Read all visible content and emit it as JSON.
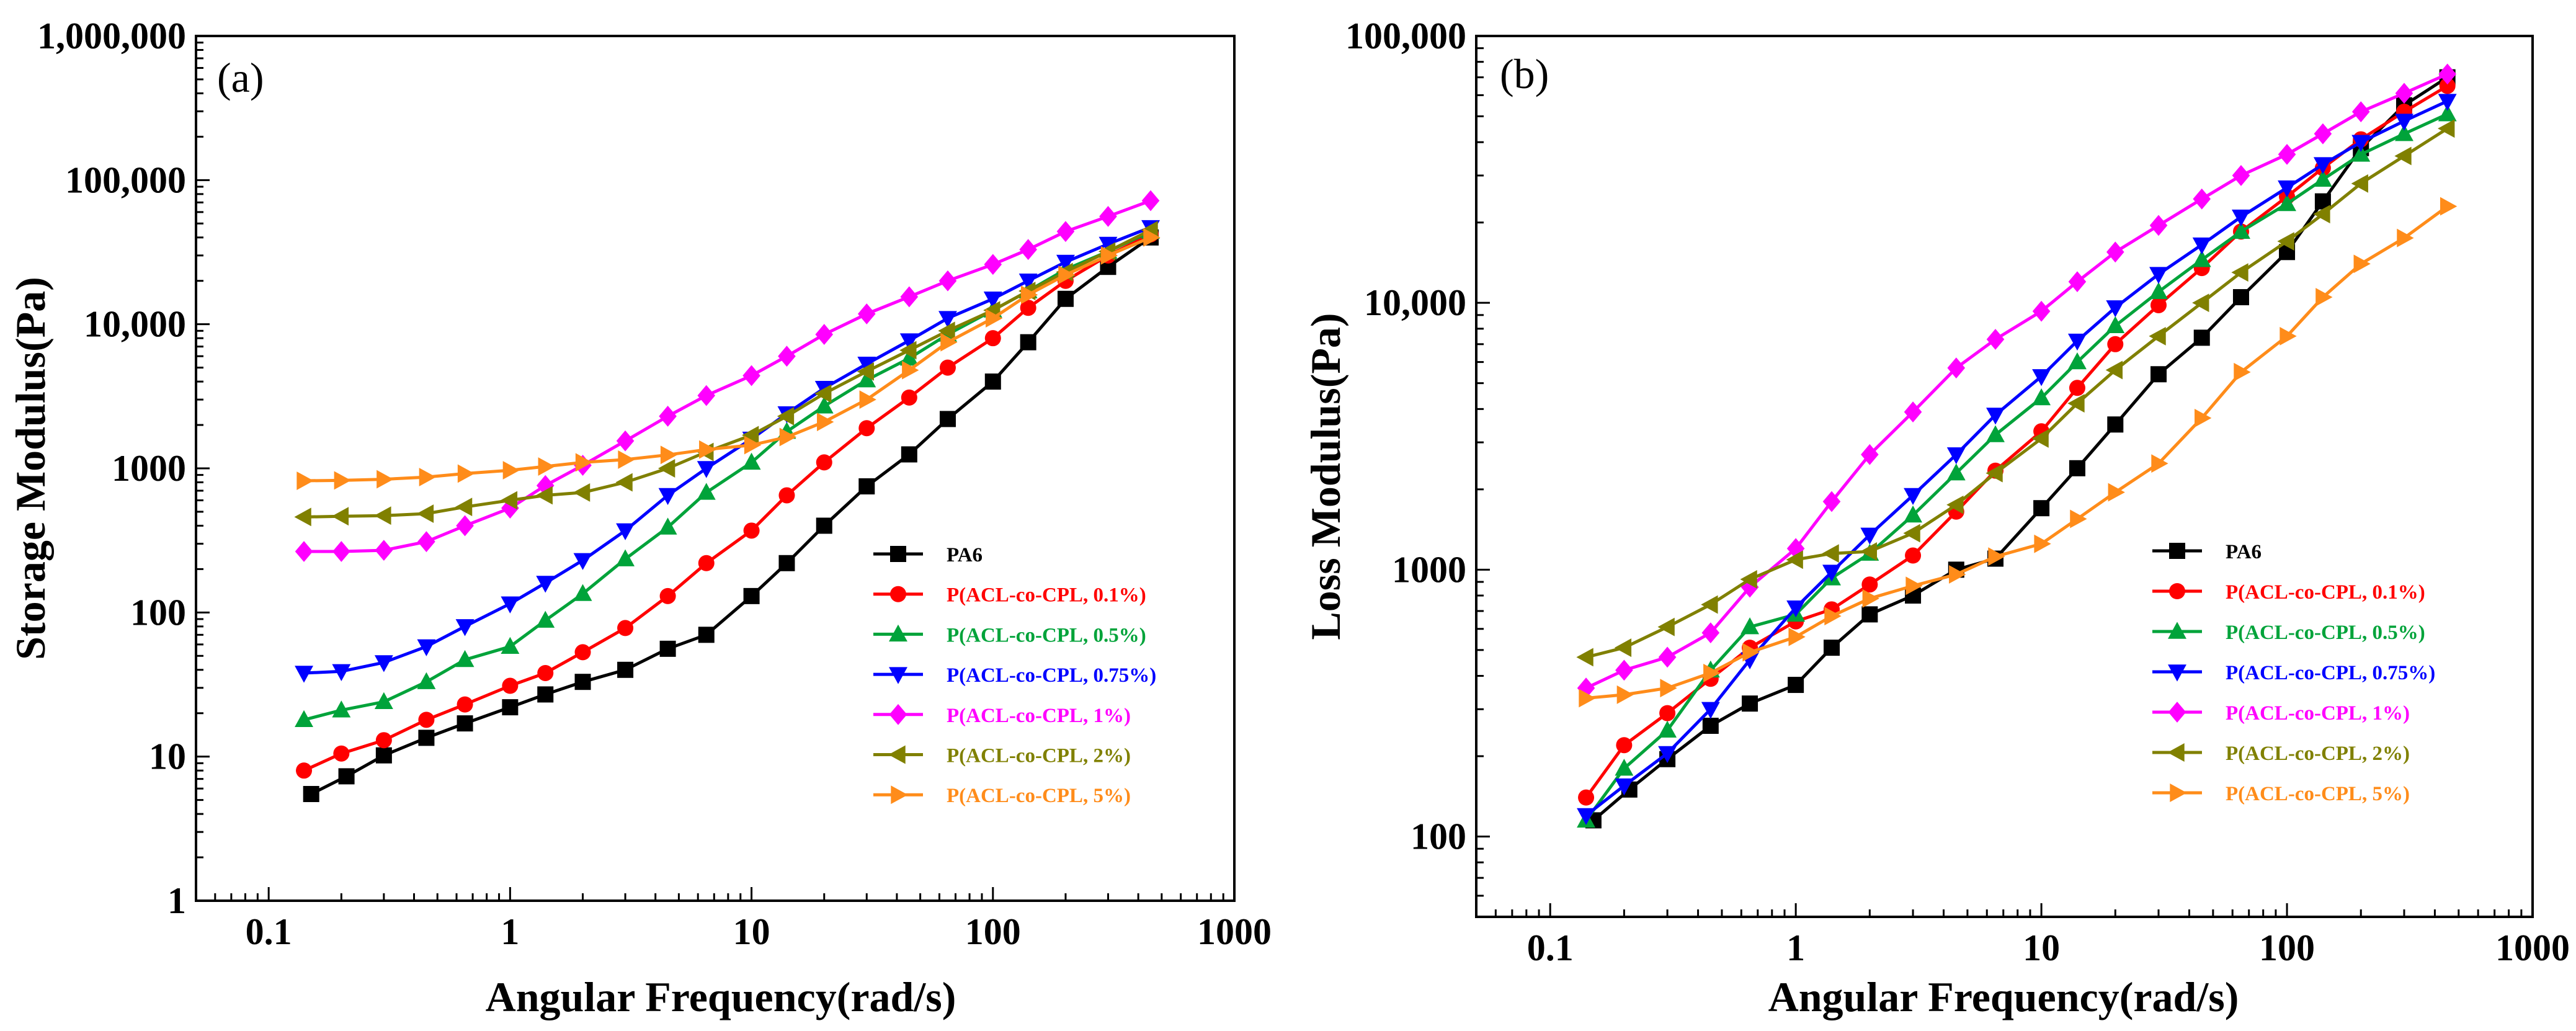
{
  "chart_data": [
    {
      "type": "line",
      "panel_label": "(a)",
      "xlabel": "Angular Frequency(rad/s)",
      "ylabel": "Storage Modulus(Pa)",
      "xscale": "log",
      "yscale": "log",
      "xlim": [
        0.05,
        1000
      ],
      "ylim": [
        1,
        1000000
      ],
      "x_ticks": [
        0.1,
        1,
        10,
        100,
        1000
      ],
      "x_tick_labels": [
        "0.1",
        "1",
        "10",
        "100",
        "1000"
      ],
      "y_ticks": [
        1,
        10,
        100,
        1000,
        10000,
        100000,
        1000000
      ],
      "y_tick_labels": [
        "1",
        "10",
        "100",
        "1000",
        "10,000",
        "100,000",
        "1,000,000"
      ],
      "legend_position": "right",
      "series": [
        {
          "name": "PA6",
          "color": "#000000",
          "marker": "square",
          "x": [
            0.15,
            0.21,
            0.3,
            0.45,
            0.65,
            1,
            1.4,
            2,
            3,
            4.5,
            6.5,
            10,
            14,
            20,
            30,
            45,
            65,
            100,
            140,
            200,
            300,
            450
          ],
          "y": [
            5.5,
            7.3,
            10.2,
            13.5,
            17,
            22,
            27,
            33,
            40,
            56,
            70,
            130,
            220,
            400,
            750,
            1250,
            2200,
            4000,
            7500,
            15000,
            25000,
            40000
          ]
        },
        {
          "name": "P(ACL-co-CPL, 0.1%)",
          "color": "#ff0000",
          "marker": "circle",
          "x": [
            0.14,
            0.2,
            0.3,
            0.45,
            0.65,
            1,
            1.4,
            2,
            3,
            4.5,
            6.5,
            10,
            14,
            20,
            30,
            45,
            65,
            100,
            140,
            200,
            300,
            450
          ],
          "y": [
            8,
            10.5,
            13,
            18,
            23,
            31,
            38,
            53,
            78,
            130,
            220,
            370,
            650,
            1100,
            1900,
            3100,
            5000,
            8000,
            13000,
            20000,
            30000,
            42000
          ]
        },
        {
          "name": "P(ACL-co-CPL, 0.5%)",
          "color": "#00a33a",
          "marker": "triangle-up",
          "x": [
            0.14,
            0.2,
            0.3,
            0.45,
            0.65,
            1,
            1.4,
            2,
            3,
            4.5,
            6.5,
            10,
            14,
            20,
            30,
            45,
            65,
            100,
            140,
            200,
            300,
            450
          ],
          "y": [
            18,
            21,
            24,
            33,
            47,
            58,
            88,
            135,
            235,
            390,
            680,
            1100,
            1800,
            2700,
            4100,
            5800,
            8500,
            12500,
            17000,
            24000,
            32000,
            44000
          ]
        },
        {
          "name": "P(ACL-co-CPL, 0.75%)",
          "color": "#0000ff",
          "marker": "triangle-down",
          "x": [
            0.14,
            0.2,
            0.3,
            0.45,
            0.65,
            1,
            1.4,
            2,
            3,
            4.5,
            6.5,
            10,
            14,
            20,
            30,
            45,
            65,
            100,
            140,
            200,
            300,
            450
          ],
          "y": [
            38,
            39,
            45,
            58,
            80,
            115,
            160,
            230,
            370,
            650,
            1000,
            1600,
            2400,
            3600,
            5300,
            7700,
            11000,
            15000,
            20000,
            27000,
            36000,
            47000
          ]
        },
        {
          "name": "P(ACL-co-CPL, 1%)",
          "color": "#ff00ff",
          "marker": "diamond",
          "x": [
            0.14,
            0.2,
            0.3,
            0.45,
            0.65,
            1,
            1.4,
            2,
            3,
            4.5,
            6.5,
            10,
            14,
            20,
            30,
            45,
            65,
            100,
            140,
            200,
            300,
            450
          ],
          "y": [
            265,
            265,
            270,
            310,
            400,
            530,
            760,
            1050,
            1550,
            2300,
            3200,
            4400,
            6000,
            8500,
            11800,
            15500,
            20000,
            26000,
            33000,
            44000,
            56000,
            72000
          ]
        },
        {
          "name": "P(ACL-co-CPL, 2%)",
          "color": "#808000",
          "marker": "triangle-left",
          "x": [
            0.14,
            0.2,
            0.3,
            0.45,
            0.65,
            1,
            1.4,
            2,
            3,
            4.5,
            6.5,
            10,
            14,
            20,
            30,
            45,
            65,
            100,
            140,
            200,
            300,
            450
          ],
          "y": [
            460,
            465,
            470,
            485,
            540,
            600,
            650,
            680,
            800,
            1000,
            1300,
            1700,
            2300,
            3300,
            4700,
            6600,
            9000,
            12500,
            17000,
            23000,
            32000,
            45000
          ]
        },
        {
          "name": "P(ACL-co-CPL, 5%)",
          "color": "#ff8c1a",
          "marker": "triangle-right",
          "x": [
            0.14,
            0.2,
            0.3,
            0.45,
            0.65,
            1,
            1.4,
            2,
            3,
            4.5,
            6.5,
            10,
            14,
            20,
            30,
            45,
            65,
            100,
            140,
            200,
            300,
            450
          ],
          "y": [
            820,
            825,
            840,
            870,
            920,
            970,
            1030,
            1100,
            1150,
            1240,
            1350,
            1450,
            1650,
            2100,
            3000,
            4800,
            7500,
            11000,
            16000,
            22000,
            30000,
            40000
          ]
        }
      ]
    },
    {
      "type": "line",
      "panel_label": "(b)",
      "xlabel": "Angular Frequency(rad/s)",
      "ylabel": "Loss Modulus(Pa)",
      "xscale": "log",
      "yscale": "log",
      "xlim": [
        0.05,
        1000
      ],
      "ylim": [
        50,
        100000
      ],
      "x_ticks": [
        0.1,
        1,
        10,
        100,
        1000
      ],
      "x_tick_labels": [
        "0.1",
        "1",
        "10",
        "100",
        "1000"
      ],
      "y_ticks": [
        100,
        1000,
        10000,
        100000
      ],
      "y_tick_labels": [
        "100",
        "1000",
        "10,000",
        "100,000"
      ],
      "legend_position": "right",
      "series": [
        {
          "name": "PA6",
          "color": "#000000",
          "marker": "square",
          "x": [
            0.15,
            0.21,
            0.3,
            0.45,
            0.65,
            1,
            1.4,
            2,
            3,
            4.5,
            6.5,
            10,
            14,
            20,
            30,
            45,
            65,
            100,
            140,
            200,
            300,
            450
          ],
          "y": [
            115,
            150,
            195,
            260,
            315,
            370,
            510,
            680,
            800,
            1000,
            1100,
            1700,
            2400,
            3500,
            5400,
            7400,
            10500,
            15500,
            24000,
            38000,
            55000,
            70000
          ]
        },
        {
          "name": "P(ACL-co-CPL, 0.1%)",
          "color": "#ff0000",
          "marker": "circle",
          "x": [
            0.14,
            0.2,
            0.3,
            0.45,
            0.65,
            1,
            1.4,
            2,
            3,
            4.5,
            6.5,
            10,
            14,
            20,
            30,
            45,
            65,
            100,
            140,
            200,
            300,
            450
          ],
          "y": [
            140,
            220,
            290,
            390,
            510,
            640,
            710,
            880,
            1130,
            1650,
            2350,
            3300,
            4800,
            7000,
            9800,
            13500,
            18500,
            25000,
            32000,
            41000,
            52000,
            65000
          ]
        },
        {
          "name": "P(ACL-co-CPL, 0.5%)",
          "color": "#00a33a",
          "marker": "triangle-up",
          "x": [
            0.14,
            0.2,
            0.3,
            0.45,
            0.65,
            1,
            1.4,
            2,
            3,
            4.5,
            6.5,
            10,
            14,
            20,
            30,
            45,
            65,
            100,
            140,
            200,
            300,
            450
          ],
          "y": [
            115,
            180,
            250,
            420,
            610,
            680,
            930,
            1150,
            1600,
            2300,
            3200,
            4400,
            6000,
            8200,
            11000,
            14500,
            18500,
            23500,
            29000,
            36000,
            43000,
            51000
          ]
        },
        {
          "name": "P(ACL-co-CPL, 0.75%)",
          "color": "#0000ff",
          "marker": "triangle-down",
          "x": [
            0.14,
            0.2,
            0.3,
            0.45,
            0.65,
            1,
            1.4,
            2,
            3,
            4.5,
            6.5,
            10,
            14,
            20,
            30,
            45,
            65,
            100,
            140,
            200,
            300,
            450
          ],
          "y": [
            120,
            155,
            205,
            300,
            460,
            720,
            980,
            1350,
            1900,
            2700,
            3800,
            5300,
            7200,
            9600,
            12800,
            16500,
            21000,
            27000,
            33000,
            40000,
            48000,
            57000
          ]
        },
        {
          "name": "P(ACL-co-CPL, 1%)",
          "color": "#ff00ff",
          "marker": "diamond",
          "x": [
            0.14,
            0.2,
            0.3,
            0.45,
            0.65,
            1,
            1.4,
            2,
            3,
            4.5,
            6.5,
            10,
            14,
            20,
            30,
            45,
            65,
            100,
            140,
            200,
            300,
            450
          ],
          "y": [
            360,
            420,
            470,
            580,
            860,
            1200,
            1800,
            2700,
            3900,
            5700,
            7300,
            9300,
            12000,
            15500,
            19500,
            24500,
            30000,
            36000,
            43000,
            52000,
            61000,
            72000
          ]
        },
        {
          "name": "P(ACL-co-CPL, 2%)",
          "color": "#808000",
          "marker": "triangle-left",
          "x": [
            0.14,
            0.2,
            0.3,
            0.45,
            0.65,
            1,
            1.4,
            2,
            3,
            4.5,
            6.5,
            10,
            14,
            20,
            30,
            45,
            65,
            100,
            140,
            200,
            300,
            450
          ],
          "y": [
            470,
            510,
            610,
            740,
            920,
            1090,
            1150,
            1170,
            1370,
            1750,
            2300,
            3100,
            4200,
            5600,
            7500,
            10000,
            13000,
            17000,
            21500,
            28000,
            35500,
            45000
          ]
        },
        {
          "name": "P(ACL-co-CPL, 5%)",
          "color": "#ff8c1a",
          "marker": "triangle-right",
          "x": [
            0.14,
            0.2,
            0.3,
            0.45,
            0.65,
            1,
            1.4,
            2,
            3,
            4.5,
            6.5,
            10,
            14,
            20,
            30,
            45,
            65,
            100,
            140,
            200,
            300,
            450
          ],
          "y": [
            330,
            340,
            360,
            410,
            490,
            560,
            670,
            780,
            870,
            960,
            1120,
            1250,
            1550,
            1950,
            2500,
            3700,
            5500,
            7500,
            10500,
            14000,
            17500,
            23000
          ]
        }
      ]
    }
  ]
}
